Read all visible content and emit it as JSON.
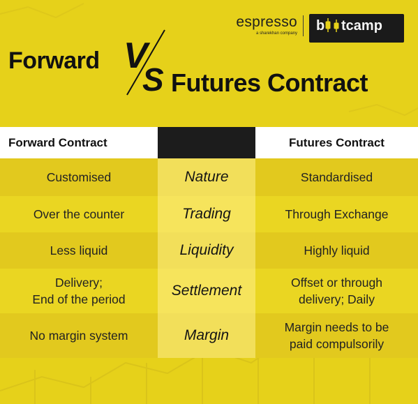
{
  "brand": {
    "word": "espresso",
    "tagline": "a sharekhan company",
    "box": "b̸o̸tcamp"
  },
  "title": {
    "forward": "Forward",
    "vs_v": "V",
    "vs_s": "S",
    "futures": "Futures Contract"
  },
  "table": {
    "header_left": "Forward Contract",
    "header_right": "Futures Contract",
    "rows": [
      {
        "left": "Customised",
        "mid": "Nature",
        "right": "Standardised"
      },
      {
        "left": "Over the counter",
        "mid": "Trading",
        "right": "Through Exchange"
      },
      {
        "left": "Less liquid",
        "mid": "Liquidity",
        "right": "Highly liquid"
      },
      {
        "left": "Delivery;\nEnd of the period",
        "mid": "Settlement",
        "right": "Offset or through\ndelivery; Daily"
      },
      {
        "left": "No margin system",
        "mid": "Margin",
        "right": "Margin needs to be\npaid compulsorily"
      }
    ]
  },
  "colors": {
    "background": "#e6d11a",
    "header_dark": "#1c1c1c",
    "header_light": "#ffffff",
    "text_dark": "#111111"
  }
}
